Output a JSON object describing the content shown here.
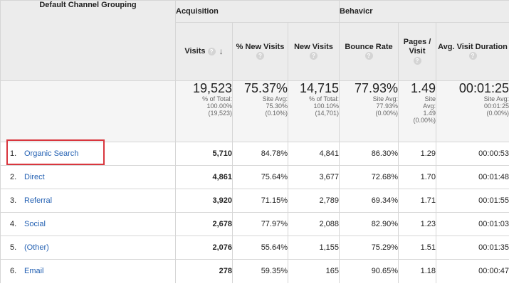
{
  "groups": {
    "acquisition": "Acquisition",
    "behavior": "Behavicr"
  },
  "columns": {
    "channel": "Default Channel Grouping",
    "visits": "Visits",
    "pct_new_visits": "% New Visits",
    "new_visits": "New Visits",
    "bounce_rate": "Bounce Rate",
    "pages_visit": "Pages / Visit",
    "avg_duration": "Avg. Visit Duration",
    "help_glyph": "?",
    "sort_glyph": "↓"
  },
  "totals": {
    "visits": {
      "value": "19,523",
      "sub1": "% of Total:",
      "sub2": "100.00%",
      "sub3": "(19,523)"
    },
    "pct_new_visits": {
      "value": "75.37%",
      "sub1": "Site Avg:",
      "sub2": "75.30%",
      "sub3": "(0.10%)"
    },
    "new_visits": {
      "value": "14,715",
      "sub1": "% of Total:",
      "sub2": "100.10%",
      "sub3": "(14,701)"
    },
    "bounce_rate": {
      "value": "77.93%",
      "sub1": "Site Avg:",
      "sub2": "77.93%",
      "sub3": "(0.00%)"
    },
    "pages_visit": {
      "value": "1.49",
      "sub1": "Site",
      "sub2": "Avg:",
      "sub3": "1.49",
      "sub4": "(0.00%)"
    },
    "avg_duration": {
      "value": "00:01:25",
      "sub1": "Site Avg:",
      "sub2": "00:01:25",
      "sub3": "(0.00%)"
    }
  },
  "rows": [
    {
      "rank": "1.",
      "channel": "Organic Search",
      "visits": "5,710",
      "pct_new": "84.78%",
      "new_visits": "4,841",
      "bounce": "86.30%",
      "pages": "1.29",
      "duration": "00:00:53"
    },
    {
      "rank": "2.",
      "channel": "Direct",
      "visits": "4,861",
      "pct_new": "75.64%",
      "new_visits": "3,677",
      "bounce": "72.68%",
      "pages": "1.70",
      "duration": "00:01:48"
    },
    {
      "rank": "3.",
      "channel": "Referral",
      "visits": "3,920",
      "pct_new": "71.15%",
      "new_visits": "2,789",
      "bounce": "69.34%",
      "pages": "1.71",
      "duration": "00:01:55"
    },
    {
      "rank": "4.",
      "channel": "Social",
      "visits": "2,678",
      "pct_new": "77.97%",
      "new_visits": "2,088",
      "bounce": "82.90%",
      "pages": "1.23",
      "duration": "00:01:03"
    },
    {
      "rank": "5.",
      "channel": "(Other)",
      "visits": "2,076",
      "pct_new": "55.64%",
      "new_visits": "1,155",
      "bounce": "75.29%",
      "pages": "1.51",
      "duration": "00:01:35"
    },
    {
      "rank": "6.",
      "channel": "Email",
      "visits": "278",
      "pct_new": "59.35%",
      "new_visits": "165",
      "bounce": "90.65%",
      "pages": "1.18",
      "duration": "00:00:47"
    }
  ],
  "colors": {
    "link": "#2461b3",
    "highlight_border": "#d9363e",
    "header_bg": "#ececec"
  }
}
